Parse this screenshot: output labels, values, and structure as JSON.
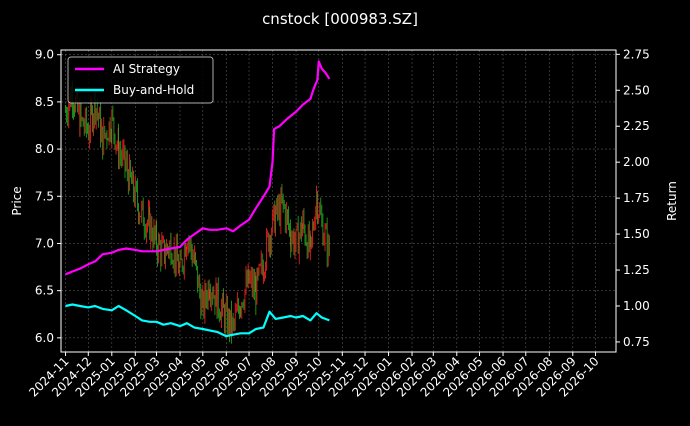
{
  "chart_data": {
    "type": "line",
    "title": "cnstock [000983.SZ]",
    "ylabel_left": "Price",
    "ylabel_right": "Return",
    "grid": true,
    "legend_position": "top-left",
    "x_ticks": [
      "2024-11",
      "2024-12",
      "2025-01",
      "2025-02",
      "2025-03",
      "2025-04",
      "2025-05",
      "2025-06",
      "2025-07",
      "2025-08",
      "2025-09",
      "2025-10",
      "2025-11",
      "2025-12",
      "2026-01",
      "2026-02",
      "2026-03",
      "2026-04",
      "2026-05",
      "2026-06",
      "2026-07",
      "2026-08",
      "2026-09",
      "2026-10"
    ],
    "xlim": [
      "2024-10-26",
      "2026-10-28"
    ],
    "y_left": {
      "ticks": [
        "6.0",
        "6.5",
        "7.0",
        "7.5",
        "8.0",
        "8.5",
        "9.0"
      ],
      "ylim": [
        5.85,
        9.05
      ]
    },
    "y_right": {
      "ticks": [
        "0.75",
        "1.00",
        "1.25",
        "1.50",
        "1.75",
        "2.00",
        "2.25",
        "2.50",
        "2.75"
      ],
      "ylim": [
        0.68,
        2.78
      ]
    },
    "series": [
      {
        "name": "AI Strategy",
        "axis": "right",
        "color": "#ff00ff",
        "points": [
          [
            "2024-11-01",
            1.22
          ],
          [
            "2024-11-10",
            1.24
          ],
          [
            "2024-11-20",
            1.26
          ],
          [
            "2024-12-01",
            1.29
          ],
          [
            "2024-12-10",
            1.31
          ],
          [
            "2024-12-20",
            1.36
          ],
          [
            "2025-01-01",
            1.37
          ],
          [
            "2025-01-10",
            1.39
          ],
          [
            "2025-01-20",
            1.4
          ],
          [
            "2025-02-01",
            1.39
          ],
          [
            "2025-02-10",
            1.38
          ],
          [
            "2025-02-20",
            1.38
          ],
          [
            "2025-03-01",
            1.38
          ],
          [
            "2025-03-10",
            1.39
          ],
          [
            "2025-03-20",
            1.4
          ],
          [
            "2025-04-01",
            1.41
          ],
          [
            "2025-04-10",
            1.46
          ],
          [
            "2025-04-20",
            1.5
          ],
          [
            "2025-05-01",
            1.54
          ],
          [
            "2025-05-10",
            1.53
          ],
          [
            "2025-05-20",
            1.53
          ],
          [
            "2025-06-01",
            1.54
          ],
          [
            "2025-06-10",
            1.52
          ],
          [
            "2025-06-20",
            1.56
          ],
          [
            "2025-07-01",
            1.6
          ],
          [
            "2025-07-10",
            1.68
          ],
          [
            "2025-07-20",
            1.76
          ],
          [
            "2025-07-28",
            1.83
          ],
          [
            "2025-08-01",
            2.0
          ],
          [
            "2025-08-03",
            2.23
          ],
          [
            "2025-08-10",
            2.25
          ],
          [
            "2025-08-20",
            2.3
          ],
          [
            "2025-09-01",
            2.35
          ],
          [
            "2025-09-10",
            2.4
          ],
          [
            "2025-09-20",
            2.44
          ],
          [
            "2025-09-25",
            2.52
          ],
          [
            "2025-09-29",
            2.57
          ],
          [
            "2025-10-01",
            2.7
          ],
          [
            "2025-10-05",
            2.65
          ],
          [
            "2025-10-10",
            2.62
          ],
          [
            "2025-10-15",
            2.58
          ]
        ]
      },
      {
        "name": "Buy-and-Hold",
        "axis": "right",
        "color": "#00ffff",
        "points": [
          [
            "2024-11-01",
            1.0
          ],
          [
            "2024-11-10",
            1.01
          ],
          [
            "2024-11-20",
            1.0
          ],
          [
            "2024-12-01",
            0.99
          ],
          [
            "2024-12-10",
            1.0
          ],
          [
            "2024-12-20",
            0.98
          ],
          [
            "2025-01-01",
            0.97
          ],
          [
            "2025-01-10",
            1.0
          ],
          [
            "2025-01-20",
            0.97
          ],
          [
            "2025-02-01",
            0.93
          ],
          [
            "2025-02-10",
            0.9
          ],
          [
            "2025-02-20",
            0.89
          ],
          [
            "2025-03-01",
            0.89
          ],
          [
            "2025-03-10",
            0.87
          ],
          [
            "2025-03-20",
            0.88
          ],
          [
            "2025-04-01",
            0.86
          ],
          [
            "2025-04-10",
            0.88
          ],
          [
            "2025-04-20",
            0.85
          ],
          [
            "2025-05-01",
            0.84
          ],
          [
            "2025-05-10",
            0.83
          ],
          [
            "2025-05-20",
            0.82
          ],
          [
            "2025-06-01",
            0.79
          ],
          [
            "2025-06-10",
            0.8
          ],
          [
            "2025-06-20",
            0.81
          ],
          [
            "2025-07-01",
            0.81
          ],
          [
            "2025-07-10",
            0.84
          ],
          [
            "2025-07-20",
            0.85
          ],
          [
            "2025-07-28",
            0.96
          ],
          [
            "2025-08-05",
            0.91
          ],
          [
            "2025-08-15",
            0.92
          ],
          [
            "2025-08-25",
            0.93
          ],
          [
            "2025-09-01",
            0.92
          ],
          [
            "2025-09-10",
            0.93
          ],
          [
            "2025-09-20",
            0.9
          ],
          [
            "2025-09-28",
            0.95
          ],
          [
            "2025-10-05",
            0.92
          ],
          [
            "2025-10-15",
            0.9
          ]
        ]
      },
      {
        "name": "Price",
        "type": "candlestick",
        "axis": "left",
        "colors": {
          "up": "#ff2020",
          "down": "#20b020"
        },
        "points": [
          [
            "2024-11-01",
            8.4
          ],
          [
            "2024-11-10",
            8.6
          ],
          [
            "2024-11-20",
            8.3
          ],
          [
            "2024-12-01",
            8.2
          ],
          [
            "2024-12-10",
            8.5
          ],
          [
            "2024-12-20",
            8.1
          ],
          [
            "2025-01-01",
            8.3
          ],
          [
            "2025-01-10",
            8.0
          ],
          [
            "2025-01-20",
            7.8
          ],
          [
            "2025-02-01",
            7.5
          ],
          [
            "2025-02-10",
            7.3
          ],
          [
            "2025-02-20",
            7.2
          ],
          [
            "2025-03-01",
            7.0
          ],
          [
            "2025-03-10",
            6.9
          ],
          [
            "2025-03-20",
            7.0
          ],
          [
            "2025-04-01",
            6.7
          ],
          [
            "2025-04-10",
            7.1
          ],
          [
            "2025-04-20",
            6.8
          ],
          [
            "2025-05-01",
            6.3
          ],
          [
            "2025-05-10",
            6.6
          ],
          [
            "2025-05-20",
            6.4
          ],
          [
            "2025-06-01",
            6.2
          ],
          [
            "2025-06-10",
            6.1
          ],
          [
            "2025-06-20",
            6.4
          ],
          [
            "2025-07-01",
            6.6
          ],
          [
            "2025-07-10",
            6.5
          ],
          [
            "2025-07-20",
            6.8
          ],
          [
            "2025-07-28",
            7.1
          ],
          [
            "2025-08-05",
            7.3
          ],
          [
            "2025-08-15",
            7.4
          ],
          [
            "2025-08-25",
            7.1
          ],
          [
            "2025-09-01",
            7.0
          ],
          [
            "2025-09-10",
            7.2
          ],
          [
            "2025-09-20",
            6.9
          ],
          [
            "2025-09-28",
            7.5
          ],
          [
            "2025-10-05",
            7.2
          ],
          [
            "2025-10-15",
            6.9
          ]
        ]
      }
    ]
  }
}
